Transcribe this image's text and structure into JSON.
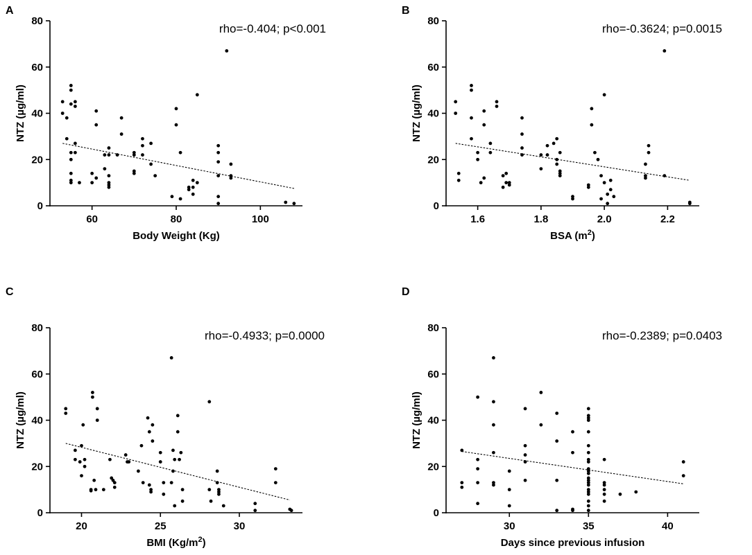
{
  "chart_data": [
    {
      "type": "scatter",
      "panel": "A",
      "title": "",
      "annotation": "rho=-0.404; p<0.001",
      "xlabel": "Body Weight (Kg)",
      "ylabel": "NTZ (µg/ml)",
      "xlim": [
        50,
        110
      ],
      "ylim": [
        0,
        80
      ],
      "xticks": [
        60,
        80,
        100
      ],
      "yticks": [
        0,
        20,
        40,
        60,
        80
      ],
      "xtick_labels": [
        "60",
        "80",
        "100"
      ],
      "ytick_labels": [
        "0",
        "20",
        "40",
        "60",
        "80"
      ],
      "trend": {
        "x": [
          53,
          108
        ],
        "y": [
          27,
          7.5
        ]
      },
      "points": [
        [
          53,
          45
        ],
        [
          53,
          40
        ],
        [
          54,
          38
        ],
        [
          54,
          29
        ],
        [
          55,
          52
        ],
        [
          55,
          50
        ],
        [
          55,
          44
        ],
        [
          55,
          23
        ],
        [
          55,
          20
        ],
        [
          55,
          14
        ],
        [
          55,
          11
        ],
        [
          55,
          10
        ],
        [
          56,
          45
        ],
        [
          56,
          43
        ],
        [
          56,
          27
        ],
        [
          56,
          23
        ],
        [
          57,
          10
        ],
        [
          60,
          14
        ],
        [
          60,
          10
        ],
        [
          61,
          41
        ],
        [
          61,
          35
        ],
        [
          61,
          12
        ],
        [
          63,
          22
        ],
        [
          63,
          16
        ],
        [
          64,
          25
        ],
        [
          64,
          22
        ],
        [
          64,
          13
        ],
        [
          64,
          10
        ],
        [
          64,
          9
        ],
        [
          64,
          8
        ],
        [
          66,
          22
        ],
        [
          67,
          38
        ],
        [
          67,
          31
        ],
        [
          70,
          23
        ],
        [
          70,
          22
        ],
        [
          70,
          15
        ],
        [
          70,
          14
        ],
        [
          72,
          29
        ],
        [
          72,
          26
        ],
        [
          72,
          22
        ],
        [
          74,
          27
        ],
        [
          74,
          18
        ],
        [
          75,
          13
        ],
        [
          79,
          4
        ],
        [
          80,
          42
        ],
        [
          80,
          35
        ],
        [
          81,
          23
        ],
        [
          81,
          3
        ],
        [
          83,
          8
        ],
        [
          83,
          7
        ],
        [
          84,
          11
        ],
        [
          84,
          8
        ],
        [
          84,
          5
        ],
        [
          85,
          48
        ],
        [
          85,
          10
        ],
        [
          90,
          26
        ],
        [
          90,
          23
        ],
        [
          90,
          19
        ],
        [
          90,
          13
        ],
        [
          90,
          4
        ],
        [
          90,
          1
        ],
        [
          92,
          67
        ],
        [
          93,
          18
        ],
        [
          93,
          13
        ],
        [
          93,
          12
        ],
        [
          106,
          1.5
        ],
        [
          108,
          1
        ]
      ]
    },
    {
      "type": "scatter",
      "panel": "B",
      "title": "",
      "annotation": "rho=-0.3624; p=0.0015",
      "xlabel": "BSA (m",
      "xlabel_sup": "2",
      "xlabel_end": ")",
      "ylabel": "NTZ (µg/ml)",
      "xlim": [
        1.5,
        2.3
      ],
      "ylim": [
        0,
        80
      ],
      "xticks": [
        1.6,
        1.8,
        2.0,
        2.2
      ],
      "yticks": [
        0,
        20,
        40,
        60,
        80
      ],
      "xtick_labels": [
        "1.6",
        "1.8",
        "2.0",
        "2.2"
      ],
      "ytick_labels": [
        "0",
        "20",
        "40",
        "60",
        "80"
      ],
      "trend": {
        "x": [
          1.53,
          2.27
        ],
        "y": [
          27,
          11
        ]
      },
      "points": [
        [
          1.53,
          45
        ],
        [
          1.53,
          40
        ],
        [
          1.54,
          14
        ],
        [
          1.54,
          11
        ],
        [
          1.58,
          52
        ],
        [
          1.58,
          50
        ],
        [
          1.58,
          38
        ],
        [
          1.58,
          29
        ],
        [
          1.6,
          23
        ],
        [
          1.6,
          20
        ],
        [
          1.61,
          10
        ],
        [
          1.62,
          41
        ],
        [
          1.62,
          35
        ],
        [
          1.62,
          12
        ],
        [
          1.64,
          27
        ],
        [
          1.64,
          23
        ],
        [
          1.66,
          45
        ],
        [
          1.66,
          43
        ],
        [
          1.68,
          13
        ],
        [
          1.68,
          8
        ],
        [
          1.69,
          14
        ],
        [
          1.69,
          10
        ],
        [
          1.7,
          10
        ],
        [
          1.7,
          9
        ],
        [
          1.74,
          38
        ],
        [
          1.74,
          31
        ],
        [
          1.74,
          25
        ],
        [
          1.74,
          22
        ],
        [
          1.8,
          22
        ],
        [
          1.8,
          16
        ],
        [
          1.82,
          26
        ],
        [
          1.82,
          22
        ],
        [
          1.84,
          27
        ],
        [
          1.85,
          29
        ],
        [
          1.85,
          20
        ],
        [
          1.85,
          18
        ],
        [
          1.86,
          23
        ],
        [
          1.86,
          15
        ],
        [
          1.86,
          14
        ],
        [
          1.86,
          13
        ],
        [
          1.9,
          4
        ],
        [
          1.9,
          3
        ],
        [
          1.95,
          9
        ],
        [
          1.95,
          8
        ],
        [
          1.96,
          42
        ],
        [
          1.96,
          35
        ],
        [
          1.97,
          23
        ],
        [
          1.98,
          20
        ],
        [
          1.99,
          13
        ],
        [
          1.99,
          3
        ],
        [
          2.0,
          48
        ],
        [
          2.0,
          10
        ],
        [
          2.01,
          5
        ],
        [
          2.01,
          1
        ],
        [
          2.02,
          11
        ],
        [
          2.02,
          7
        ],
        [
          2.03,
          4
        ],
        [
          2.13,
          18
        ],
        [
          2.13,
          13
        ],
        [
          2.13,
          12
        ],
        [
          2.14,
          26
        ],
        [
          2.14,
          23
        ],
        [
          2.19,
          67
        ],
        [
          2.19,
          13
        ],
        [
          2.27,
          1.5
        ],
        [
          2.27,
          1
        ]
      ]
    },
    {
      "type": "scatter",
      "panel": "C",
      "title": "",
      "annotation": "rho=-0.4933; p=0.0000",
      "xlabel": "BMI (Kg/m",
      "xlabel_sup": "2",
      "xlabel_end": ")",
      "ylabel": "NTZ (µg/ml)",
      "xlim": [
        18,
        34
      ],
      "ylim": [
        0,
        80
      ],
      "xticks": [
        20,
        25,
        30
      ],
      "yticks": [
        0,
        20,
        40,
        60,
        80
      ],
      "xtick_labels": [
        "20",
        "25",
        "30"
      ],
      "ytick_labels": [
        "0",
        "20",
        "40",
        "60",
        "80"
      ],
      "trend": {
        "x": [
          19,
          33.2
        ],
        "y": [
          30,
          5.5
        ]
      },
      "points": [
        [
          19,
          45
        ],
        [
          19,
          43
        ],
        [
          19.6,
          27
        ],
        [
          19.6,
          23
        ],
        [
          19.9,
          22
        ],
        [
          20,
          29
        ],
        [
          20,
          16
        ],
        [
          20.1,
          38
        ],
        [
          20.2,
          23
        ],
        [
          20.2,
          20
        ],
        [
          20.6,
          10
        ],
        [
          20.6,
          9.5
        ],
        [
          20.7,
          52
        ],
        [
          20.7,
          50
        ],
        [
          20.8,
          14
        ],
        [
          20.9,
          10
        ],
        [
          21,
          45
        ],
        [
          21,
          40
        ],
        [
          21.4,
          10
        ],
        [
          21.8,
          23
        ],
        [
          21.9,
          15
        ],
        [
          22,
          14
        ],
        [
          22.1,
          13
        ],
        [
          22.1,
          11
        ],
        [
          22.8,
          25
        ],
        [
          22.9,
          22
        ],
        [
          23,
          22
        ],
        [
          23.6,
          18
        ],
        [
          23.8,
          29
        ],
        [
          23.9,
          13
        ],
        [
          24.2,
          41
        ],
        [
          24.3,
          35
        ],
        [
          24.3,
          12
        ],
        [
          24.4,
          10
        ],
        [
          24.4,
          9
        ],
        [
          24.5,
          38
        ],
        [
          24.5,
          31
        ],
        [
          25,
          26
        ],
        [
          25,
          22
        ],
        [
          25.2,
          13
        ],
        [
          25.2,
          8
        ],
        [
          25.7,
          67
        ],
        [
          25.7,
          13
        ],
        [
          25.8,
          27
        ],
        [
          25.8,
          18
        ],
        [
          25.9,
          23
        ],
        [
          25.9,
          3
        ],
        [
          26.1,
          42
        ],
        [
          26.1,
          35
        ],
        [
          26.2,
          23
        ],
        [
          26.3,
          26
        ],
        [
          26.4,
          10
        ],
        [
          26.4,
          5
        ],
        [
          28.1,
          48
        ],
        [
          28.1,
          10
        ],
        [
          28.2,
          5
        ],
        [
          28.6,
          18
        ],
        [
          28.6,
          13
        ],
        [
          28.7,
          10
        ],
        [
          28.7,
          9
        ],
        [
          28.7,
          8
        ],
        [
          29,
          3
        ],
        [
          31,
          4
        ],
        [
          31,
          1
        ],
        [
          32.3,
          19
        ],
        [
          32.3,
          13
        ],
        [
          33.2,
          1.5
        ],
        [
          33.3,
          1
        ]
      ]
    },
    {
      "type": "scatter",
      "panel": "D",
      "title": "",
      "annotation": "rho=-0.2389; p=0.0403",
      "xlabel": "Days since previous infusion",
      "ylabel": "NTZ (µg/ml)",
      "xlim": [
        26,
        42
      ],
      "ylim": [
        0,
        80
      ],
      "xticks": [
        30,
        35,
        40
      ],
      "yticks": [
        0,
        20,
        40,
        60,
        80
      ],
      "xtick_labels": [
        "30",
        "35",
        "40"
      ],
      "ytick_labels": [
        "0",
        "20",
        "40",
        "60",
        "80"
      ],
      "trend": {
        "x": [
          27,
          41
        ],
        "y": [
          26.5,
          12.5
        ]
      },
      "points": [
        [
          27,
          27
        ],
        [
          27,
          13
        ],
        [
          27,
          11
        ],
        [
          28,
          50
        ],
        [
          28,
          23
        ],
        [
          28,
          19
        ],
        [
          28,
          13
        ],
        [
          28,
          4
        ],
        [
          29,
          67
        ],
        [
          29,
          48
        ],
        [
          29,
          38
        ],
        [
          29,
          26
        ],
        [
          29,
          13
        ],
        [
          29,
          12
        ],
        [
          30,
          18
        ],
        [
          30,
          10
        ],
        [
          30,
          3
        ],
        [
          31,
          45
        ],
        [
          31,
          29
        ],
        [
          31,
          25
        ],
        [
          31,
          22
        ],
        [
          31,
          14
        ],
        [
          32,
          52
        ],
        [
          32,
          38
        ],
        [
          33,
          43
        ],
        [
          33,
          31
        ],
        [
          33,
          14
        ],
        [
          33,
          1
        ],
        [
          34,
          35
        ],
        [
          34,
          26
        ],
        [
          34,
          1.5
        ],
        [
          34,
          1
        ],
        [
          35,
          45
        ],
        [
          35,
          42
        ],
        [
          35,
          41
        ],
        [
          35,
          40
        ],
        [
          35,
          35
        ],
        [
          35,
          29
        ],
        [
          35,
          26
        ],
        [
          35,
          23
        ],
        [
          35,
          22
        ],
        [
          35,
          19
        ],
        [
          35,
          18
        ],
        [
          35,
          17
        ],
        [
          35,
          15
        ],
        [
          35,
          14
        ],
        [
          35,
          13
        ],
        [
          35,
          12
        ],
        [
          35,
          10
        ],
        [
          35,
          9
        ],
        [
          35,
          8
        ],
        [
          35,
          5
        ],
        [
          35,
          3
        ],
        [
          35,
          1
        ],
        [
          36,
          23
        ],
        [
          36,
          13
        ],
        [
          36,
          12
        ],
        [
          36,
          10
        ],
        [
          36,
          8
        ],
        [
          36,
          5
        ],
        [
          37,
          8
        ],
        [
          38,
          9
        ],
        [
          41,
          22
        ],
        [
          41,
          16
        ]
      ]
    }
  ]
}
